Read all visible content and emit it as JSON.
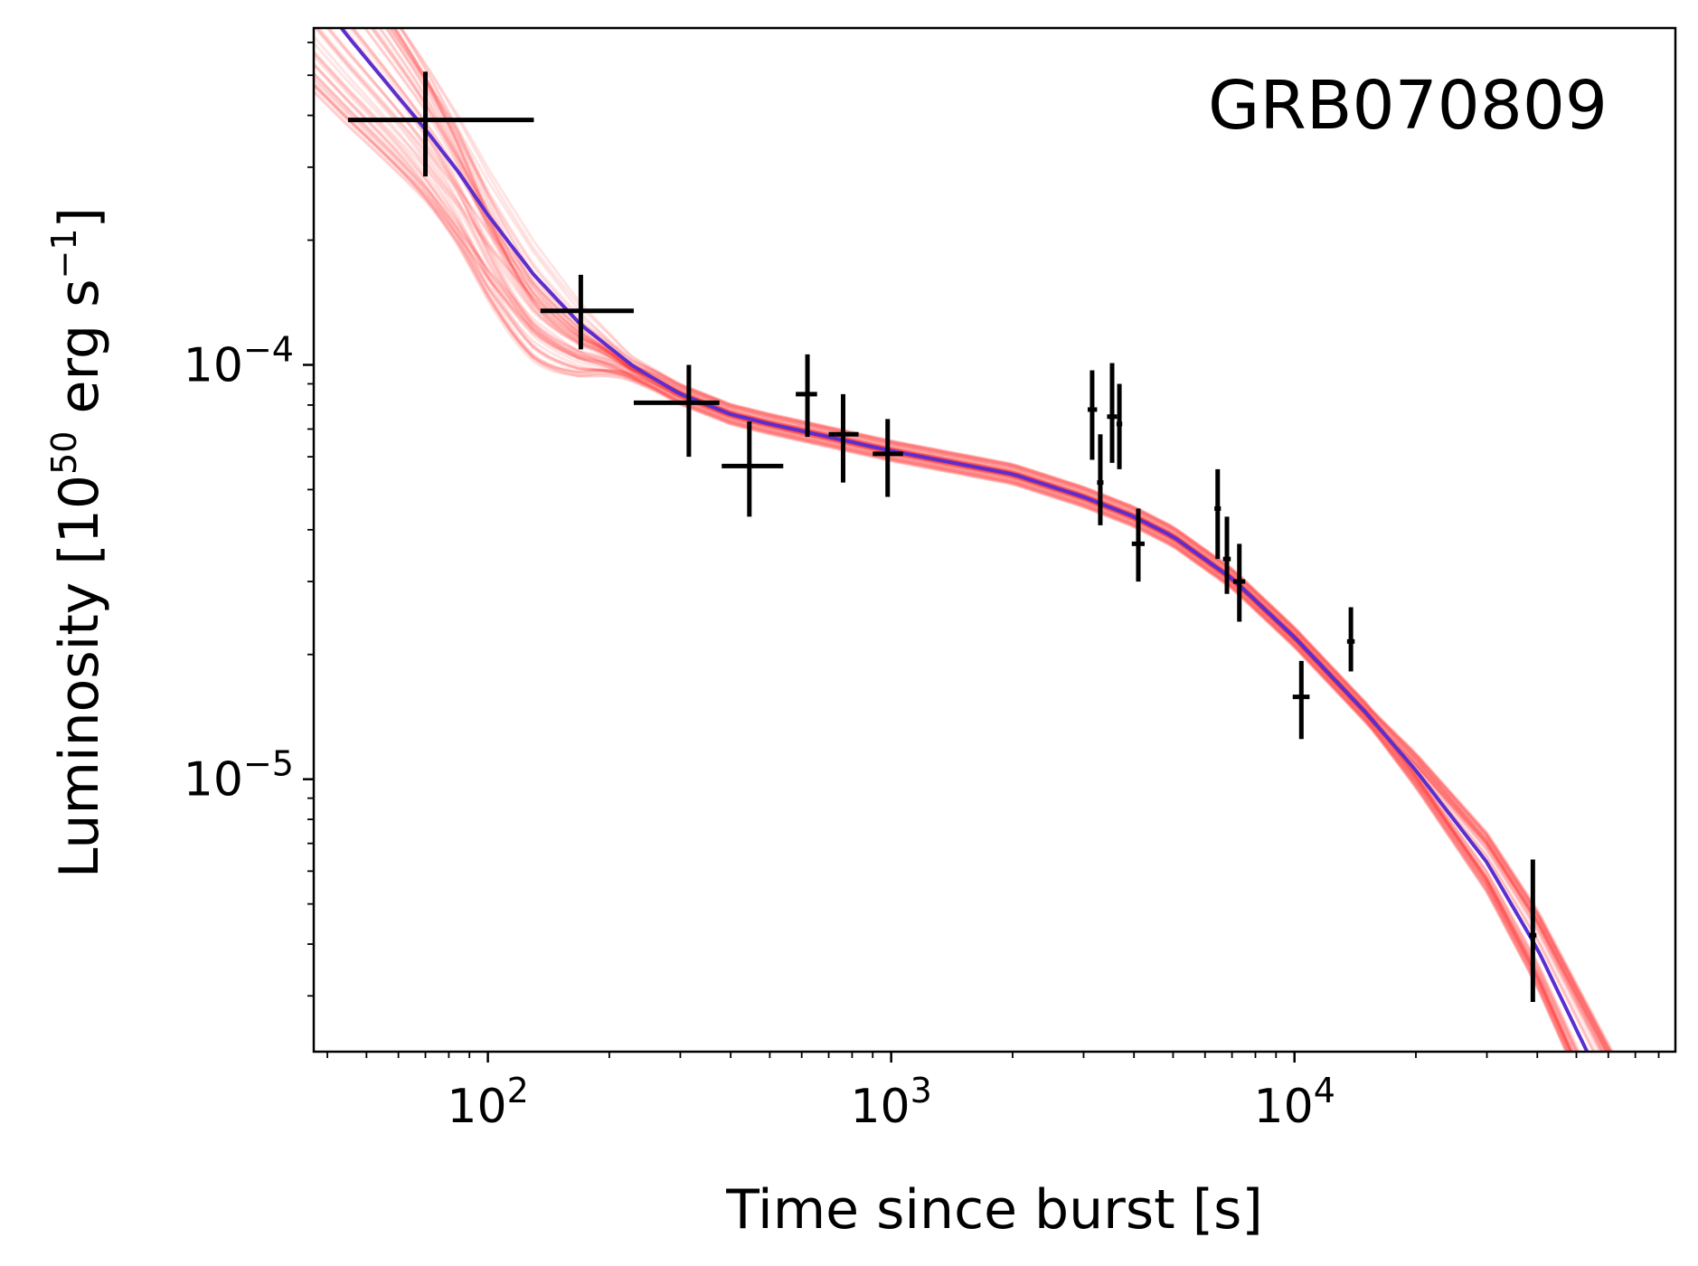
{
  "chart_data": {
    "type": "scatter",
    "annotation": "GRB070809",
    "xlabel": "Time since burst [s]",
    "ylabel": {
      "prefix": "Luminosity [10",
      "prefix_sup": "50",
      "middle": " erg s",
      "middle_sup": "−1",
      "suffix": "]"
    },
    "xscale": "log",
    "yscale": "log",
    "xlim": [
      37,
      88000
    ],
    "ylim": [
      2.2e-06,
      0.00065
    ],
    "xticks": [
      {
        "value": 100,
        "base": "10",
        "exp": "2"
      },
      {
        "value": 1000,
        "base": "10",
        "exp": "3"
      },
      {
        "value": 10000,
        "base": "10",
        "exp": "4"
      }
    ],
    "yticks": [
      {
        "value": 1e-05,
        "base": "10",
        "exp": "−5"
      },
      {
        "value": 0.0001,
        "base": "10",
        "exp": "−4"
      }
    ],
    "grid": false,
    "series": [
      {
        "kind": "errorbar",
        "color": "#000000",
        "points": [
          {
            "x": 70,
            "y": 0.00039,
            "xerr": [
              25,
              60
            ],
            "yerr": [
              0.000105,
              0.00012
            ]
          },
          {
            "x": 170,
            "y": 0.000135,
            "xerr": [
              35,
              60
            ],
            "yerr": [
              2.6e-05,
              3e-05
            ]
          },
          {
            "x": 315,
            "y": 8.1e-05,
            "xerr": [
              85,
              60
            ],
            "yerr": [
              2.1e-05,
              1.9e-05
            ]
          },
          {
            "x": 445,
            "y": 5.7e-05,
            "xerr": [
              65,
              95
            ],
            "yerr": [
              1.4e-05,
              1.6e-05
            ]
          },
          {
            "x": 620,
            "y": 8.5e-05,
            "xerr": [
              40,
              35
            ],
            "yerr": [
              1.8e-05,
              2.1e-05
            ]
          },
          {
            "x": 760,
            "y": 6.8e-05,
            "xerr": [
              60,
              70
            ],
            "yerr": [
              1.6e-05,
              1.7e-05
            ]
          },
          {
            "x": 980,
            "y": 6.1e-05,
            "xerr": [
              80,
              90
            ],
            "yerr": [
              1.3e-05,
              1.3e-05
            ]
          },
          {
            "x": 3150,
            "y": 7.8e-05,
            "xerr": [
              80,
              90
            ],
            "yerr": [
              1.9e-05,
              1.9e-05
            ]
          },
          {
            "x": 3300,
            "y": 5.2e-05,
            "xerr": [
              60,
              60
            ],
            "yerr": [
              1.1e-05,
              1.6e-05
            ]
          },
          {
            "x": 3530,
            "y": 7.5e-05,
            "xerr": [
              100,
              100
            ],
            "yerr": [
              1.7e-05,
              2.6e-05
            ]
          },
          {
            "x": 3680,
            "y": 7.2e-05,
            "xerr": [
              60,
              60
            ],
            "yerr": [
              1.6e-05,
              1.8e-05
            ]
          },
          {
            "x": 4100,
            "y": 3.7e-05,
            "xerr": [
              150,
              150
            ],
            "yerr": [
              7e-06,
              8e-06
            ]
          },
          {
            "x": 6450,
            "y": 4.5e-05,
            "xerr": [
              120,
              120
            ],
            "yerr": [
              1.1e-05,
              1.1e-05
            ]
          },
          {
            "x": 6800,
            "y": 3.4e-05,
            "xerr": [
              150,
              150
            ],
            "yerr": [
              6e-06,
              9e-06
            ]
          },
          {
            "x": 7300,
            "y": 3e-05,
            "xerr": [
              250,
              250
            ],
            "yerr": [
              6e-06,
              7e-06
            ]
          },
          {
            "x": 10400,
            "y": 1.58e-05,
            "xerr": [
              500,
              500
            ],
            "yerr": [
              3.3e-06,
              3.5e-06
            ]
          },
          {
            "x": 13800,
            "y": 2.15e-05,
            "xerr": [
              300,
              300
            ],
            "yerr": [
              3.3e-06,
              4.5e-06
            ]
          },
          {
            "x": 39000,
            "y": 4.2e-06,
            "xerr": [
              800,
              800
            ],
            "yerr": [
              1.3e-06,
              2.2e-06
            ]
          }
        ]
      },
      {
        "kind": "model",
        "color": "#5b2ecf",
        "x": [
          37,
          45,
          55,
          70,
          85,
          100,
          130,
          170,
          230,
          300,
          400,
          500,
          700,
          1000,
          1500,
          2000,
          3000,
          4000,
          5000,
          7000,
          10000,
          15000,
          20000,
          30000,
          40000,
          52000
        ],
        "y": [
          0.00079,
          0.00062,
          0.00049,
          0.00037,
          0.00029,
          0.00023,
          0.000165,
          0.000125,
          9.9e-05,
          8.5e-05,
          7.6e-05,
          7.2e-05,
          6.7e-05,
          6.2e-05,
          5.75e-05,
          5.45e-05,
          4.8e-05,
          4.3e-05,
          3.85e-05,
          3.05e-05,
          2.2e-05,
          1.45e-05,
          1.05e-05,
          6.3e-06,
          3.9e-06,
          2.3e-06
        ]
      },
      {
        "kind": "posterior-samples",
        "color": "#ff2020",
        "opacity": 0.12,
        "count": 60
      }
    ]
  }
}
